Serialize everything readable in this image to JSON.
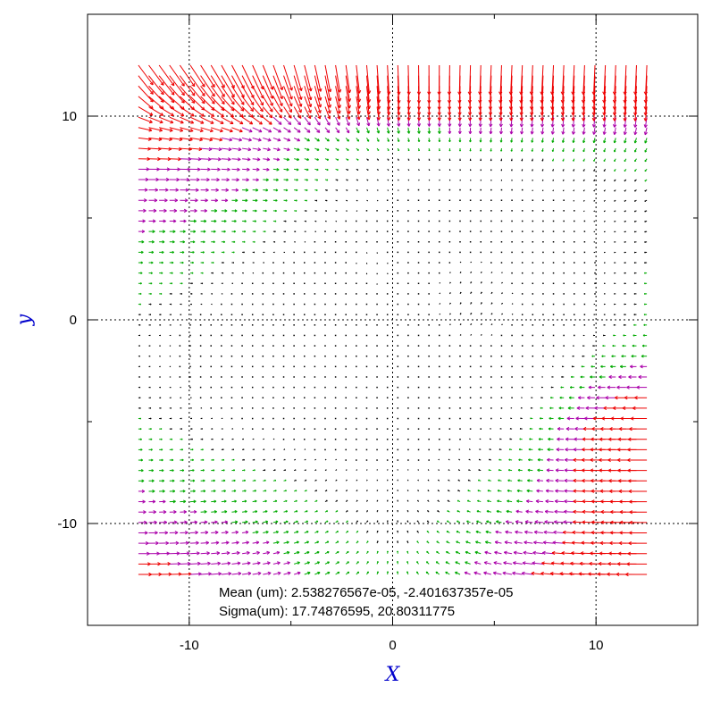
{
  "chart_data": {
    "type": "quiver",
    "xlabel": "X",
    "ylabel": "y",
    "xlim": [
      -15,
      15
    ],
    "ylim": [
      -15,
      15
    ],
    "xticks": [
      -10,
      0,
      10
    ],
    "yticks": [
      -10,
      0,
      10
    ],
    "xtick_labels": [
      "-10",
      "0",
      "10"
    ],
    "ytick_labels": [
      "-10",
      "0",
      "10"
    ],
    "grid": "dotted at major ticks",
    "field": {
      "x_range": [
        -12.5,
        12.5
      ],
      "y_range": [
        -12.5,
        12.5
      ],
      "grid_points_per_axis": 50,
      "arrow_scale_per_um": 0.03,
      "arrow_length_bins": [
        {
          "max_length": 0.12,
          "color": "black"
        },
        {
          "max_length": 0.3,
          "color": "green"
        },
        {
          "max_length": 0.55,
          "color": "purple"
        },
        {
          "max_length": null,
          "color": "red"
        }
      ]
    },
    "annotations": [
      "Mean (um): 2.538276567e-05, -2.401637357e-05",
      "Sigma(um): 17.74876595, 20.80311775"
    ]
  },
  "colors": {
    "axis_title": "#0000cc",
    "frame": "#000000",
    "grid": "#000000",
    "vector_small": "#000000",
    "vector_mid": "#00aa00",
    "vector_large": "#aa00aa",
    "vector_max": "#ee0000"
  }
}
